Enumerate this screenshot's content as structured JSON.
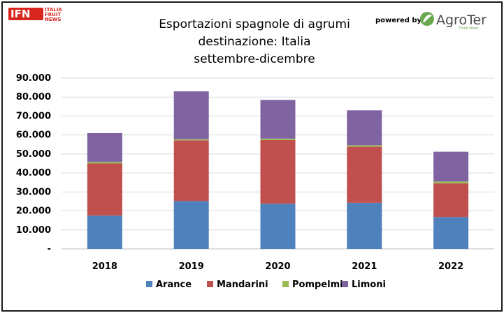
{
  "branding": {
    "ifn_logo": "IFN",
    "ifn_lines": [
      "ITALIA",
      "FRUIT",
      "NEWS"
    ],
    "powered_by": "powered by",
    "agroter_logo": "AgroTer",
    "agroter_tagline": "Think Fresh",
    "colors": {
      "ifn_red": "#d7261e",
      "agroter_green": "#6aa84f"
    }
  },
  "chart_data": {
    "type": "bar",
    "stacked": true,
    "title": [
      "Esportazioni spagnole di agrumi",
      "destinazione: Italia",
      "settembre-dicembre"
    ],
    "xlabel": "",
    "ylabel": "",
    "categories": [
      "2018",
      "2019",
      "2020",
      "2021",
      "2022"
    ],
    "ylim": [
      0,
      90000
    ],
    "yticks": [
      0,
      10000,
      20000,
      30000,
      40000,
      50000,
      60000,
      70000,
      80000,
      90000
    ],
    "ytick_labels": [
      "-",
      "10.000",
      "20.000",
      "30.000",
      "40.000",
      "50.000",
      "60.000",
      "70.000",
      "80.000",
      "90.000"
    ],
    "grid": true,
    "legend_position": "bottom",
    "series": [
      {
        "name": "Arance",
        "color": "#4f81bd",
        "values": [
          17500,
          25200,
          23800,
          24300,
          16800
        ]
      },
      {
        "name": "Mandarini",
        "color": "#c0504d",
        "values": [
          27500,
          32000,
          33500,
          29500,
          17700
        ]
      },
      {
        "name": "Pompelmi",
        "color": "#9bbb59",
        "values": [
          800,
          600,
          800,
          800,
          1000
        ]
      },
      {
        "name": "Limoni",
        "color": "#8064a2",
        "values": [
          15200,
          25200,
          20400,
          18400,
          15700
        ]
      }
    ]
  }
}
